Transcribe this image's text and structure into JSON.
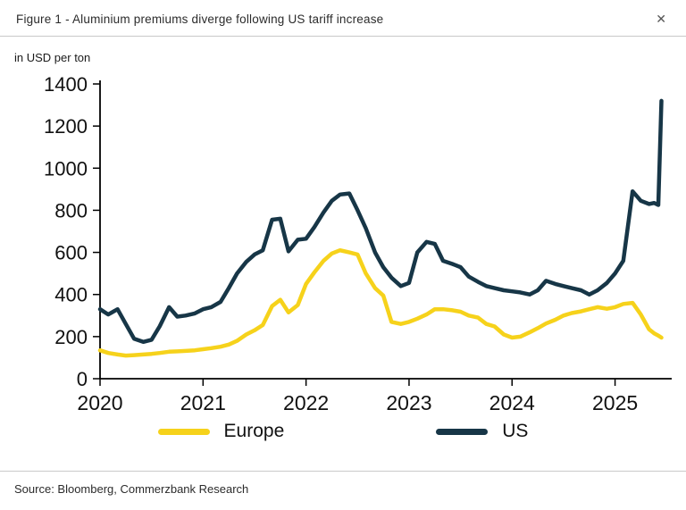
{
  "header": {
    "title": "Figure 1 - Aluminium premiums diverge following US tariff increase",
    "close_glyph": "✕"
  },
  "source": "Source: Bloomberg, Commerzbank Research",
  "legend": [
    {
      "label": "Europe",
      "color": "#F6D21B"
    },
    {
      "label": "US",
      "color": "#173647"
    }
  ],
  "chart_data": {
    "type": "line",
    "title": "Figure 1 - Aluminium premiums diverge following US tariff increase",
    "xlabel": "",
    "ylabel": "in USD per ton",
    "ylim": [
      0,
      1400
    ],
    "yticks": [
      0,
      200,
      400,
      600,
      800,
      1000,
      1200,
      1400
    ],
    "xticks": [
      2020,
      2021,
      2022,
      2023,
      2024,
      2025
    ],
    "xlim": [
      2020.0,
      2025.55
    ],
    "grid": false,
    "legend_position": "bottom",
    "x": [
      2020.0,
      2020.08,
      2020.17,
      2020.25,
      2020.33,
      2020.42,
      2020.5,
      2020.58,
      2020.67,
      2020.75,
      2020.83,
      2020.92,
      2021.0,
      2021.08,
      2021.17,
      2021.25,
      2021.33,
      2021.42,
      2021.5,
      2021.58,
      2021.67,
      2021.75,
      2021.83,
      2021.92,
      2022.0,
      2022.08,
      2022.17,
      2022.25,
      2022.33,
      2022.42,
      2022.5,
      2022.58,
      2022.67,
      2022.75,
      2022.83,
      2022.92,
      2023.0,
      2023.08,
      2023.17,
      2023.25,
      2023.33,
      2023.42,
      2023.5,
      2023.58,
      2023.67,
      2023.75,
      2023.83,
      2023.92,
      2024.0,
      2024.08,
      2024.17,
      2024.25,
      2024.33,
      2024.42,
      2024.5,
      2024.58,
      2024.67,
      2024.75,
      2024.83,
      2024.92,
      2025.0,
      2025.08,
      2025.17,
      2025.25,
      2025.33,
      2025.38,
      2025.42,
      2025.45
    ],
    "series": [
      {
        "name": "Europe",
        "color": "#F6D21B",
        "values": [
          135,
          122,
          115,
          110,
          112,
          115,
          118,
          122,
          128,
          130,
          132,
          135,
          140,
          145,
          152,
          162,
          180,
          210,
          230,
          255,
          345,
          375,
          315,
          350,
          450,
          505,
          560,
          595,
          610,
          600,
          590,
          500,
          430,
          395,
          270,
          260,
          270,
          285,
          305,
          330,
          330,
          325,
          318,
          300,
          290,
          260,
          248,
          210,
          195,
          200,
          220,
          240,
          262,
          280,
          300,
          312,
          320,
          330,
          340,
          332,
          340,
          355,
          360,
          305,
          235,
          215,
          205,
          195
        ]
      },
      {
        "name": "US",
        "color": "#173647",
        "values": [
          330,
          305,
          330,
          260,
          190,
          175,
          185,
          250,
          340,
          295,
          300,
          310,
          330,
          340,
          365,
          430,
          500,
          555,
          590,
          610,
          755,
          760,
          605,
          660,
          665,
          720,
          790,
          845,
          875,
          880,
          800,
          715,
          600,
          530,
          480,
          440,
          455,
          600,
          650,
          640,
          560,
          545,
          530,
          485,
          460,
          440,
          430,
          420,
          415,
          410,
          400,
          420,
          465,
          450,
          440,
          430,
          420,
          400,
          420,
          455,
          500,
          560,
          890,
          845,
          830,
          835,
          825,
          1320
        ]
      }
    ]
  }
}
